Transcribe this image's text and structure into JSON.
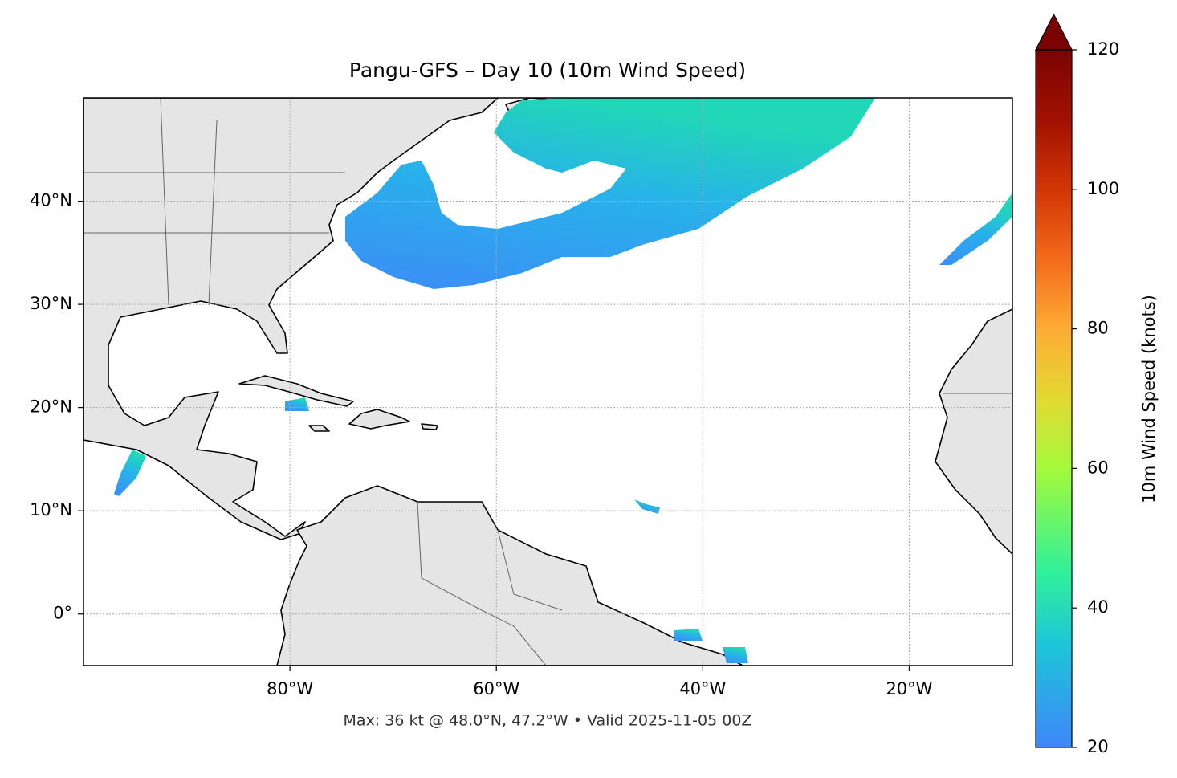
{
  "chart_data": {
    "type": "map",
    "title": "Pangu-GFS – Day 10 (10m Wind Speed)",
    "annotation": "Max: 36 kt @ 48.0°N, 47.2°W • Valid 2025-11-05 00Z",
    "xlim": [
      -100,
      -10
    ],
    "ylim": [
      -5,
      50
    ],
    "xticks": [
      {
        "value": -80,
        "label": "80°W"
      },
      {
        "value": -60,
        "label": "60°W"
      },
      {
        "value": -40,
        "label": "40°W"
      },
      {
        "value": -20,
        "label": "20°W"
      }
    ],
    "yticks": [
      {
        "value": 0,
        "label": "0°"
      },
      {
        "value": 10,
        "label": "10°N"
      },
      {
        "value": 20,
        "label": "20°N"
      },
      {
        "value": 30,
        "label": "30°N"
      },
      {
        "value": 40,
        "label": "40°N"
      }
    ],
    "grid": true,
    "colorbar": {
      "label": "10m Wind Speed (knots)",
      "lim": [
        20,
        120
      ],
      "ticks": [
        20,
        40,
        60,
        80,
        100,
        120
      ],
      "extend": "max"
    }
  }
}
